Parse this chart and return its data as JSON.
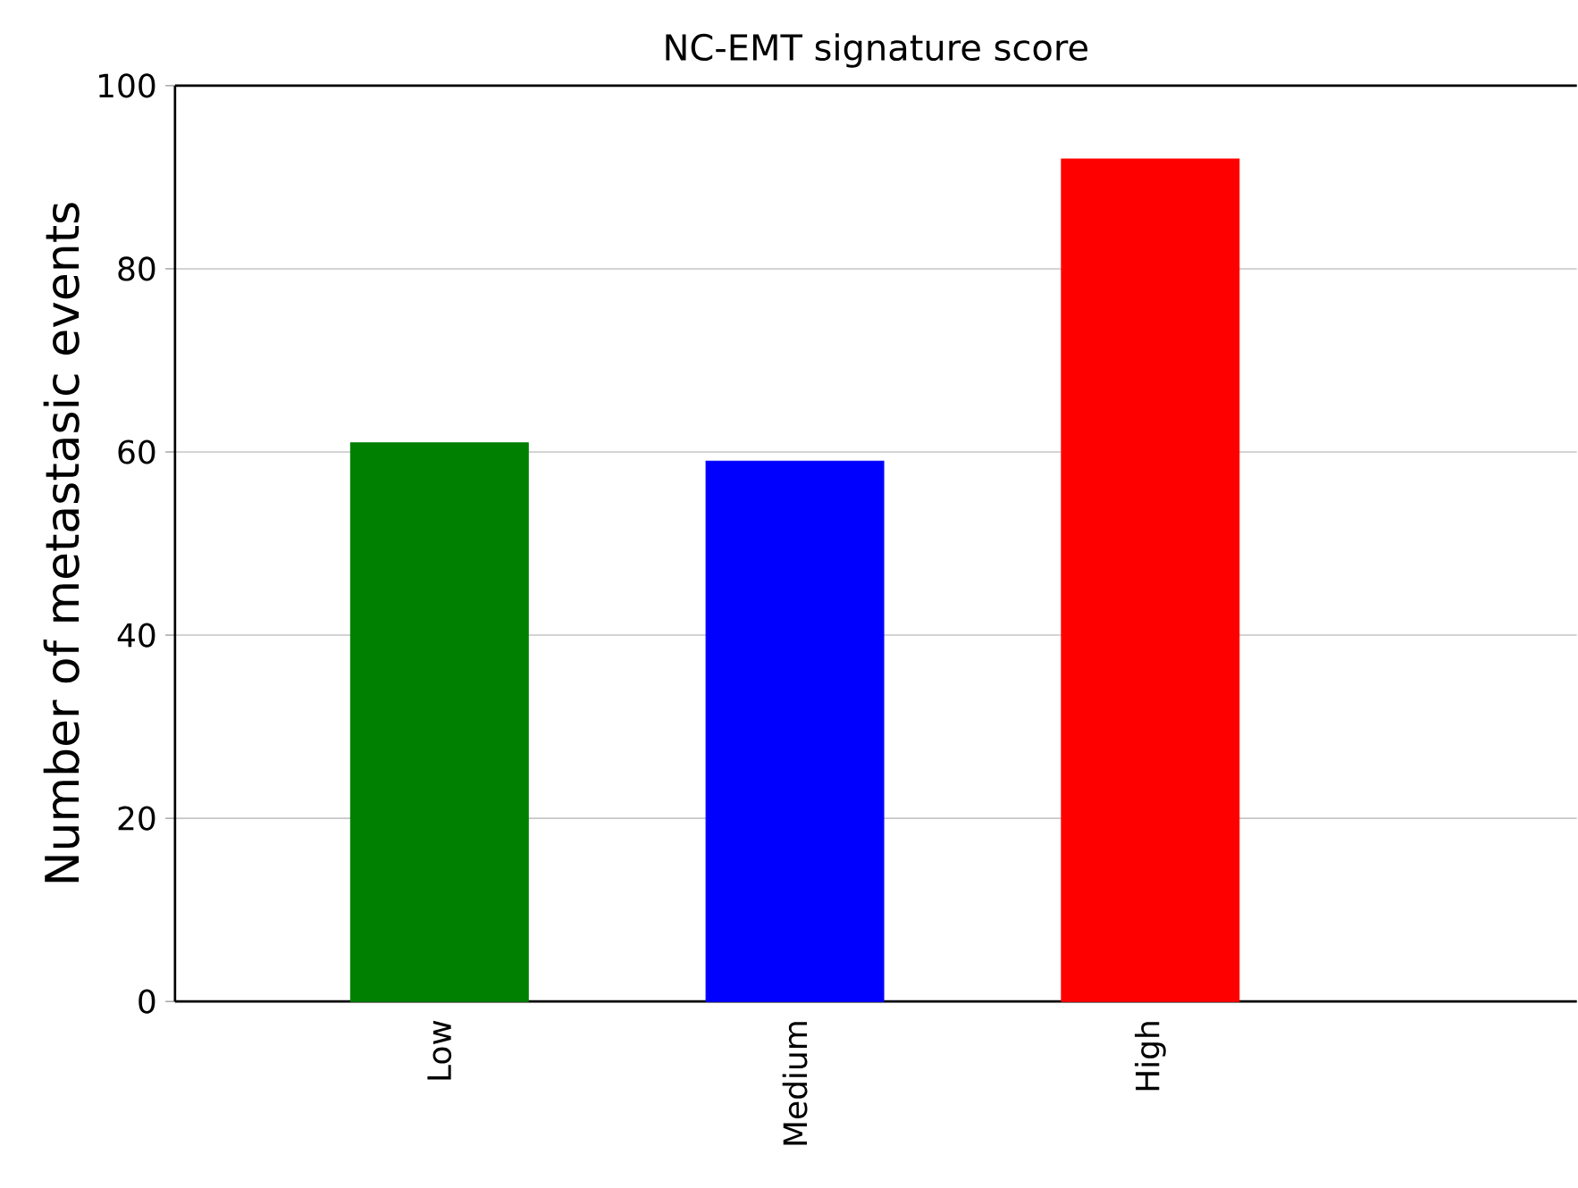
{
  "chart_data": {
    "type": "bar",
    "title": "NC-EMT signature score",
    "ylabel": "Number of metastasic events",
    "categories": [
      "Low",
      "Medium",
      "High"
    ],
    "values": [
      61,
      59,
      92
    ],
    "colors": [
      "#008000",
      "#0000ff",
      "#ff0000"
    ],
    "ylim": [
      0,
      100
    ],
    "yticks": [
      0,
      20,
      40,
      60,
      80,
      100
    ],
    "grid": "y"
  }
}
